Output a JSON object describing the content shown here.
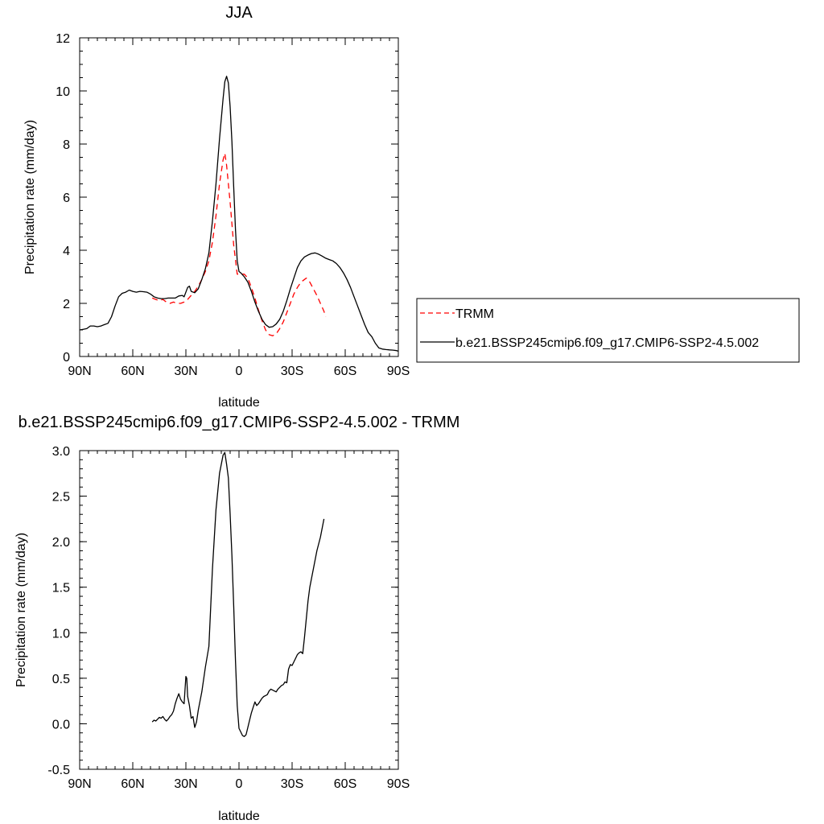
{
  "chart_data": [
    {
      "type": "line",
      "title": "JJA",
      "xlabel": "latitude",
      "ylabel": "Precipitation rate (mm/day)",
      "xlim": [
        90,
        -90
      ],
      "ylim": [
        0,
        12
      ],
      "x_ticks": [
        {
          "value": 90,
          "label": "90N"
        },
        {
          "value": 60,
          "label": "60N"
        },
        {
          "value": 30,
          "label": "30N"
        },
        {
          "value": 0,
          "label": "0"
        },
        {
          "value": -30,
          "label": "30S"
        },
        {
          "value": -60,
          "label": "60S"
        },
        {
          "value": -90,
          "label": "90S"
        }
      ],
      "y_ticks": [
        {
          "value": 0,
          "label": "0"
        },
        {
          "value": 2,
          "label": "2"
        },
        {
          "value": 4,
          "label": "4"
        },
        {
          "value": 6,
          "label": "6"
        },
        {
          "value": 8,
          "label": "8"
        },
        {
          "value": 10,
          "label": "10"
        },
        {
          "value": 12,
          "label": "12"
        }
      ],
      "grid": false,
      "legend_placement": "right",
      "series": [
        {
          "name": "TRMM",
          "color": "#ff0000",
          "dash": "dashed",
          "points": [
            [
              49,
              2.2
            ],
            [
              47,
              2.15
            ],
            [
              45,
              2.1
            ],
            [
              43,
              2.15
            ],
            [
              41,
              2.05
            ],
            [
              39,
              2.0
            ],
            [
              37,
              2.05
            ],
            [
              35,
              2.0
            ],
            [
              33,
              2.0
            ],
            [
              31,
              2.05
            ],
            [
              29,
              2.15
            ],
            [
              27,
              2.3
            ],
            [
              25,
              2.45
            ],
            [
              23,
              2.65
            ],
            [
              21,
              2.9
            ],
            [
              19,
              3.2
            ],
            [
              17,
              3.6
            ],
            [
              15,
              4.3
            ],
            [
              13,
              5.3
            ],
            [
              11,
              6.5
            ],
            [
              9,
              7.4
            ],
            [
              8,
              7.65
            ],
            [
              7,
              7.2
            ],
            [
              5,
              5.8
            ],
            [
              3,
              4.2
            ],
            [
              1,
              3.1
            ],
            [
              -1,
              3.1
            ],
            [
              -3,
              3.1
            ],
            [
              -5,
              2.95
            ],
            [
              -7,
              2.6
            ],
            [
              -9,
              2.2
            ],
            [
              -11,
              1.75
            ],
            [
              -13,
              1.35
            ],
            [
              -15,
              1.0
            ],
            [
              -17,
              0.82
            ],
            [
              -19,
              0.78
            ],
            [
              -21,
              0.85
            ],
            [
              -23,
              1.05
            ],
            [
              -25,
              1.3
            ],
            [
              -27,
              1.65
            ],
            [
              -29,
              2.0
            ],
            [
              -31,
              2.35
            ],
            [
              -33,
              2.6
            ],
            [
              -35,
              2.8
            ],
            [
              -37,
              2.9
            ],
            [
              -38,
              2.95
            ],
            [
              -40,
              2.8
            ],
            [
              -42,
              2.55
            ],
            [
              -44,
              2.3
            ],
            [
              -46,
              2.0
            ],
            [
              -48,
              1.7
            ],
            [
              -49,
              1.5
            ]
          ]
        },
        {
          "name": "b.e21.BSSP245cmip6.f09_g17.CMIP6-SSP2-4.5.002",
          "color": "#000000",
          "dash": "solid",
          "points": [
            [
              90,
              1.0
            ],
            [
              88,
              1.02
            ],
            [
              86,
              1.05
            ],
            [
              84,
              1.15
            ],
            [
              82,
              1.15
            ],
            [
              80,
              1.12
            ],
            [
              78,
              1.15
            ],
            [
              76,
              1.2
            ],
            [
              74,
              1.25
            ],
            [
              72,
              1.5
            ],
            [
              70,
              1.9
            ],
            [
              68,
              2.25
            ],
            [
              66,
              2.38
            ],
            [
              64,
              2.42
            ],
            [
              62,
              2.5
            ],
            [
              60,
              2.45
            ],
            [
              58,
              2.42
            ],
            [
              56,
              2.45
            ],
            [
              54,
              2.44
            ],
            [
              52,
              2.42
            ],
            [
              50,
              2.35
            ],
            [
              48,
              2.25
            ],
            [
              46,
              2.2
            ],
            [
              44,
              2.18
            ],
            [
              42,
              2.18
            ],
            [
              40,
              2.2
            ],
            [
              38,
              2.2
            ],
            [
              36,
              2.2
            ],
            [
              34,
              2.28
            ],
            [
              32,
              2.3
            ],
            [
              31,
              2.25
            ],
            [
              29,
              2.6
            ],
            [
              28,
              2.65
            ],
            [
              27,
              2.45
            ],
            [
              25,
              2.4
            ],
            [
              23,
              2.55
            ],
            [
              21,
              2.9
            ],
            [
              19,
              3.3
            ],
            [
              17,
              3.9
            ],
            [
              15,
              5.1
            ],
            [
              13,
              6.5
            ],
            [
              11,
              8.2
            ],
            [
              9,
              9.7
            ],
            [
              8,
              10.35
            ],
            [
              7,
              10.55
            ],
            [
              6,
              10.3
            ],
            [
              5,
              9.4
            ],
            [
              4,
              8.1
            ],
            [
              3,
              6.4
            ],
            [
              2,
              4.8
            ],
            [
              1,
              3.6
            ],
            [
              0,
              3.2
            ],
            [
              -1,
              3.15
            ],
            [
              -3,
              3.0
            ],
            [
              -5,
              2.8
            ],
            [
              -7,
              2.45
            ],
            [
              -9,
              2.05
            ],
            [
              -11,
              1.7
            ],
            [
              -13,
              1.4
            ],
            [
              -15,
              1.2
            ],
            [
              -17,
              1.1
            ],
            [
              -19,
              1.12
            ],
            [
              -21,
              1.22
            ],
            [
              -23,
              1.4
            ],
            [
              -25,
              1.7
            ],
            [
              -27,
              2.1
            ],
            [
              -29,
              2.55
            ],
            [
              -31,
              2.95
            ],
            [
              -33,
              3.35
            ],
            [
              -35,
              3.6
            ],
            [
              -37,
              3.75
            ],
            [
              -39,
              3.82
            ],
            [
              -41,
              3.88
            ],
            [
              -43,
              3.9
            ],
            [
              -45,
              3.85
            ],
            [
              -47,
              3.78
            ],
            [
              -49,
              3.7
            ],
            [
              -51,
              3.65
            ],
            [
              -53,
              3.6
            ],
            [
              -55,
              3.5
            ],
            [
              -57,
              3.35
            ],
            [
              -59,
              3.15
            ],
            [
              -61,
              2.9
            ],
            [
              -63,
              2.6
            ],
            [
              -65,
              2.25
            ],
            [
              -67,
              1.9
            ],
            [
              -69,
              1.55
            ],
            [
              -71,
              1.2
            ],
            [
              -73,
              0.9
            ],
            [
              -75,
              0.75
            ],
            [
              -77,
              0.5
            ],
            [
              -79,
              0.32
            ],
            [
              -81,
              0.28
            ],
            [
              -83,
              0.26
            ],
            [
              -85,
              0.25
            ],
            [
              -87,
              0.24
            ],
            [
              -89,
              0.22
            ],
            [
              -90,
              0.2
            ]
          ]
        }
      ]
    },
    {
      "type": "line",
      "title": "b.e21.BSSP245cmip6.f09_g17.CMIP6-SSP2-4.5.002 - TRMM",
      "xlabel": "latitude",
      "ylabel": "Precipitation rate (mm/day)",
      "xlim": [
        90,
        -90
      ],
      "ylim": [
        -0.5,
        3.0
      ],
      "x_ticks": [
        {
          "value": 90,
          "label": "90N"
        },
        {
          "value": 60,
          "label": "60N"
        },
        {
          "value": 30,
          "label": "30N"
        },
        {
          "value": 0,
          "label": "0"
        },
        {
          "value": -30,
          "label": "30S"
        },
        {
          "value": -60,
          "label": "60S"
        },
        {
          "value": -90,
          "label": "90S"
        }
      ],
      "y_ticks": [
        {
          "value": -0.5,
          "label": "-0.5"
        },
        {
          "value": 0.0,
          "label": "0.0"
        },
        {
          "value": 0.5,
          "label": "0.5"
        },
        {
          "value": 1.0,
          "label": "1.0"
        },
        {
          "value": 1.5,
          "label": "1.5"
        },
        {
          "value": 2.0,
          "label": "2.0"
        },
        {
          "value": 2.5,
          "label": "2.5"
        },
        {
          "value": 3.0,
          "label": "3.0"
        }
      ],
      "grid": false,
      "series": [
        {
          "color": "#000000",
          "dash": "solid",
          "points": [
            [
              49,
              0.02
            ],
            [
              48,
              0.04
            ],
            [
              47,
              0.03
            ],
            [
              46,
              0.05
            ],
            [
              45,
              0.07
            ],
            [
              44,
              0.06
            ],
            [
              43,
              0.08
            ],
            [
              42,
              0.05
            ],
            [
              41,
              0.03
            ],
            [
              40,
              0.05
            ],
            [
              39,
              0.08
            ],
            [
              38,
              0.1
            ],
            [
              37,
              0.14
            ],
            [
              36,
              0.22
            ],
            [
              35,
              0.28
            ],
            [
              34,
              0.33
            ],
            [
              33,
              0.27
            ],
            [
              32,
              0.24
            ],
            [
              31,
              0.22
            ],
            [
              30,
              0.52
            ],
            [
              29.5,
              0.5
            ],
            [
              29,
              0.3
            ],
            [
              28,
              0.2
            ],
            [
              27,
              0.06
            ],
            [
              26,
              0.08
            ],
            [
              25,
              -0.04
            ],
            [
              24,
              0.02
            ],
            [
              23,
              0.15
            ],
            [
              21,
              0.35
            ],
            [
              19,
              0.62
            ],
            [
              17,
              0.85
            ],
            [
              15,
              1.7
            ],
            [
              13,
              2.35
            ],
            [
              11,
              2.75
            ],
            [
              9,
              2.95
            ],
            [
              8,
              2.98
            ],
            [
              7,
              2.85
            ],
            [
              6,
              2.7
            ],
            [
              5,
              2.3
            ],
            [
              4,
              1.85
            ],
            [
              3,
              1.3
            ],
            [
              2,
              0.7
            ],
            [
              1,
              0.2
            ],
            [
              0,
              -0.05
            ],
            [
              -1,
              -0.09
            ],
            [
              -2,
              -0.13
            ],
            [
              -3,
              -0.14
            ],
            [
              -4,
              -0.12
            ],
            [
              -5,
              -0.04
            ],
            [
              -6,
              0.04
            ],
            [
              -7,
              0.12
            ],
            [
              -8,
              0.18
            ],
            [
              -9,
              0.24
            ],
            [
              -10,
              0.2
            ],
            [
              -11,
              0.22
            ],
            [
              -12,
              0.25
            ],
            [
              -13,
              0.28
            ],
            [
              -14,
              0.3
            ],
            [
              -15,
              0.31
            ],
            [
              -16,
              0.32
            ],
            [
              -17,
              0.36
            ],
            [
              -18,
              0.38
            ],
            [
              -19,
              0.37
            ],
            [
              -20,
              0.36
            ],
            [
              -21,
              0.35
            ],
            [
              -22,
              0.38
            ],
            [
              -23,
              0.4
            ],
            [
              -24,
              0.42
            ],
            [
              -25,
              0.43
            ],
            [
              -26,
              0.46
            ],
            [
              -27,
              0.45
            ],
            [
              -28,
              0.6
            ],
            [
              -29,
              0.65
            ],
            [
              -30,
              0.64
            ],
            [
              -31,
              0.68
            ],
            [
              -32,
              0.72
            ],
            [
              -33,
              0.76
            ],
            [
              -34,
              0.78
            ],
            [
              -35,
              0.79
            ],
            [
              -36,
              0.77
            ],
            [
              -37,
              0.95
            ],
            [
              -38,
              1.15
            ],
            [
              -39,
              1.35
            ],
            [
              -40,
              1.5
            ],
            [
              -42,
              1.7
            ],
            [
              -44,
              1.9
            ],
            [
              -46,
              2.05
            ],
            [
              -48,
              2.25
            ]
          ]
        }
      ]
    }
  ]
}
